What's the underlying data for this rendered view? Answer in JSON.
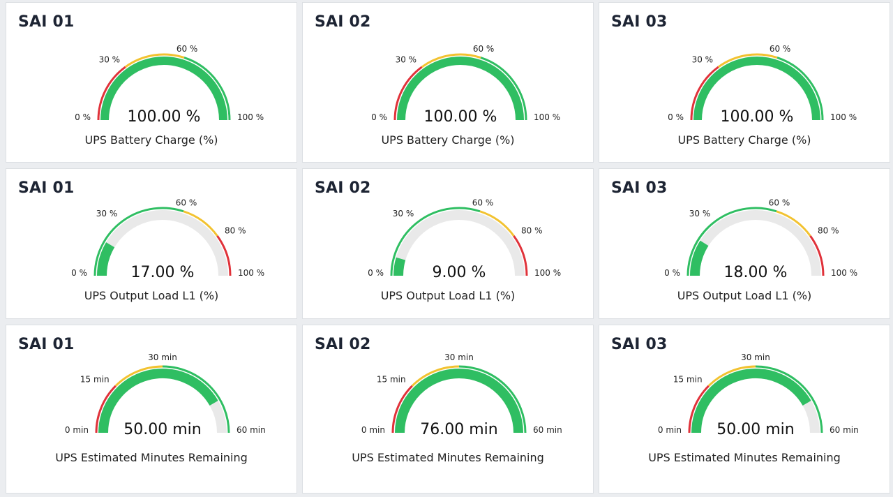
{
  "colors": {
    "green": "#2fbe62",
    "yellow": "#f2c230",
    "red": "#e0323a",
    "track": "#e9e9e9"
  },
  "rows": [
    {
      "metric": "UPS Battery Charge (%)",
      "min": 0,
      "max": 100,
      "thresholds": [
        {
          "from": 0,
          "to": 30,
          "color": "red"
        },
        {
          "from": 30,
          "to": 60,
          "color": "yellow"
        },
        {
          "from": 60,
          "to": 100,
          "color": "green"
        }
      ],
      "tick_labels": [
        {
          "value": 0,
          "text": "0 %"
        },
        {
          "value": 30,
          "text": "30 %"
        },
        {
          "value": 60,
          "text": "60 %"
        },
        {
          "value": 100,
          "text": "100 %"
        }
      ],
      "panels": [
        {
          "title": "SAI 01",
          "value": 100,
          "value_text": "100.00 %"
        },
        {
          "title": "SAI 02",
          "value": 100,
          "value_text": "100.00 %"
        },
        {
          "title": "SAI 03",
          "value": 100,
          "value_text": "100.00 %"
        }
      ]
    },
    {
      "metric": "UPS Output Load L1 (%)",
      "min": 0,
      "max": 100,
      "thresholds": [
        {
          "from": 0,
          "to": 60,
          "color": "green"
        },
        {
          "from": 60,
          "to": 80,
          "color": "yellow"
        },
        {
          "from": 80,
          "to": 100,
          "color": "red"
        }
      ],
      "tick_labels": [
        {
          "value": 0,
          "text": "0 %"
        },
        {
          "value": 30,
          "text": "30 %"
        },
        {
          "value": 60,
          "text": "60 %"
        },
        {
          "value": 80,
          "text": "80 %"
        },
        {
          "value": 100,
          "text": "100 %"
        }
      ],
      "panels": [
        {
          "title": "SAI 01",
          "value": 17,
          "value_text": "17.00 %"
        },
        {
          "title": "SAI 02",
          "value": 9,
          "value_text": "9.00 %"
        },
        {
          "title": "SAI 03",
          "value": 18,
          "value_text": "18.00 %"
        }
      ]
    },
    {
      "metric": "UPS Estimated Minutes Remaining",
      "min": 0,
      "max": 60,
      "thresholds": [
        {
          "from": 0,
          "to": 15,
          "color": "red"
        },
        {
          "from": 15,
          "to": 30,
          "color": "yellow"
        },
        {
          "from": 30,
          "to": 60,
          "color": "green"
        }
      ],
      "tick_labels": [
        {
          "value": 0,
          "text": "0 min"
        },
        {
          "value": 15,
          "text": "15 min"
        },
        {
          "value": 30,
          "text": "30 min"
        },
        {
          "value": 60,
          "text": "60 min"
        }
      ],
      "panels": [
        {
          "title": "SAI 01",
          "value": 50,
          "value_text": "50.00 min"
        },
        {
          "title": "SAI 02",
          "value": 76,
          "value_text": "76.00 min"
        },
        {
          "title": "SAI 03",
          "value": 50,
          "value_text": "50.00 min"
        }
      ]
    }
  ]
}
